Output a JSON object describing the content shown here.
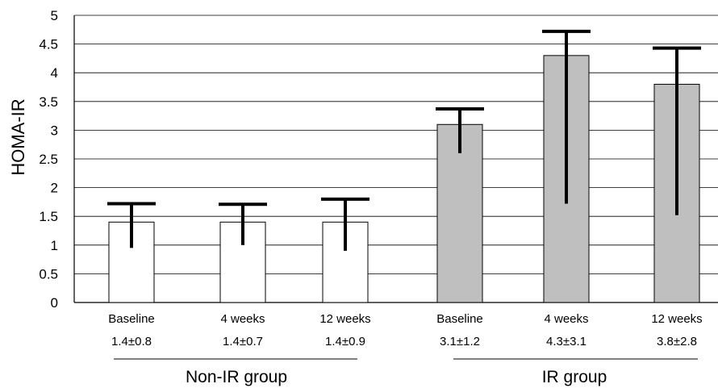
{
  "chart_data": {
    "type": "bar",
    "ylabel": "HOMA-IR",
    "ylim": [
      0,
      5
    ],
    "yticks": [
      "0",
      "0.5",
      "1",
      "1.5",
      "2",
      "2.5",
      "3",
      "3.5",
      "4",
      "4.5",
      "5"
    ],
    "grid": true,
    "groups": [
      {
        "name": "Non-IR group",
        "color": "#ffffff"
      },
      {
        "name": "IR group",
        "color": "#bfbfbf"
      }
    ],
    "bars": [
      {
        "category": "Baseline",
        "group": "Non-IR group",
        "value": 1.4,
        "err_low": 0.95,
        "err_high": 1.72,
        "label": "1.4±0.8"
      },
      {
        "category": "4 weeks",
        "group": "Non-IR group",
        "value": 1.4,
        "err_low": 1.0,
        "err_high": 1.71,
        "label": "1.4±0.7"
      },
      {
        "category": "12 weeks",
        "group": "Non-IR group",
        "value": 1.4,
        "err_low": 0.9,
        "err_high": 1.8,
        "label": "1.4±0.9"
      },
      {
        "category": "Baseline",
        "group": "IR group",
        "value": 3.1,
        "err_low": 2.6,
        "err_high": 3.37,
        "label": "3.1±1.2"
      },
      {
        "category": "4 weeks",
        "group": "IR group",
        "value": 4.3,
        "err_low": 1.72,
        "err_high": 4.72,
        "label": "4.3±3.1"
      },
      {
        "category": "12 weeks",
        "group": "IR group",
        "value": 3.8,
        "err_low": 1.52,
        "err_high": 4.43,
        "label": "3.8±2.8"
      }
    ]
  }
}
